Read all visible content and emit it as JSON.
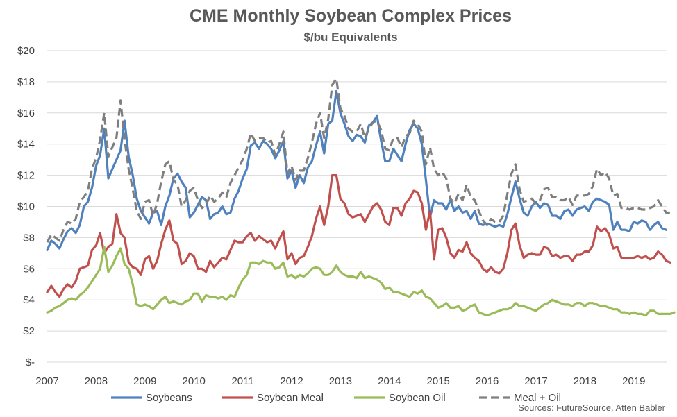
{
  "chart_data": {
    "type": "line",
    "title": "CME Monthly Soybean Complex Prices",
    "subtitle": "$/bu Equivalents",
    "source": "Sources: FutureSource, Atten Babler",
    "x_start": 2007,
    "x_end": 2019.67,
    "x_step": 0.0833,
    "x_ticks": [
      "2007",
      "2008",
      "2009",
      "2010",
      "2011",
      "2012",
      "2013",
      "2014",
      "2015",
      "2016",
      "2017",
      "2018",
      "2019"
    ],
    "ylim": [
      0,
      20
    ],
    "y_ticks": [
      "$-",
      "$2",
      "$4",
      "$6",
      "$8",
      "$10",
      "$12",
      "$14",
      "$16",
      "$18",
      "$20"
    ],
    "grid": true,
    "legend_position": "bottom",
    "series": [
      {
        "name": "Soybeans",
        "color": "#4F81BD",
        "dash": false,
        "values": [
          7.2,
          7.8,
          7.6,
          7.3,
          7.9,
          8.4,
          8.6,
          8.3,
          8.8,
          10.0,
          10.3,
          11.2,
          12.6,
          13.3,
          15.0,
          11.8,
          12.4,
          13.0,
          13.6,
          15.5,
          13.2,
          12.0,
          10.5,
          9.7,
          9.3,
          8.9,
          9.6,
          9.7,
          8.8,
          10.0,
          10.7,
          11.8,
          12.1,
          11.6,
          11.2,
          9.3,
          9.6,
          10.1,
          10.6,
          10.4,
          9.2,
          9.5,
          9.6,
          10.0,
          9.5,
          9.6,
          10.5,
          11.0,
          11.8,
          12.4,
          13.9,
          14.1,
          13.7,
          14.2,
          14.0,
          13.7,
          13.1,
          13.6,
          14.2,
          11.8,
          12.3,
          11.2,
          12.0,
          11.5,
          12.5,
          12.9,
          13.9,
          14.8,
          13.4,
          15.3,
          15.5,
          17.4,
          16.0,
          15.3,
          14.5,
          14.2,
          14.6,
          14.5,
          14.1,
          15.2,
          15.4,
          15.8,
          14.2,
          12.9,
          12.9,
          13.7,
          13.3,
          12.9,
          14.0,
          14.9,
          15.3,
          15.0,
          14.0,
          11.7,
          9.3,
          10.4,
          10.2,
          10.2,
          9.8,
          10.4,
          9.7,
          10.0,
          9.6,
          9.7,
          9.2,
          9.7,
          8.9,
          8.8,
          8.9,
          8.8,
          8.7,
          8.8,
          8.7,
          9.5,
          10.6,
          11.6,
          10.5,
          9.6,
          9.4,
          10.0,
          10.3,
          9.9,
          10.2,
          10.1,
          9.4,
          9.4,
          9.2,
          9.7,
          9.8,
          9.4,
          9.8,
          9.9,
          10.0,
          9.7,
          10.3,
          10.5,
          10.4,
          10.3,
          10.1,
          8.5,
          9.0,
          8.5,
          8.5,
          8.4,
          9.0,
          8.9,
          9.1,
          9.0,
          8.5,
          8.8,
          9.0,
          8.6,
          8.5
        ]
      },
      {
        "name": "Soybean Meal",
        "color": "#C0504D",
        "dash": false,
        "values": [
          4.5,
          4.9,
          4.5,
          4.2,
          4.7,
          5.0,
          4.8,
          5.2,
          6.0,
          6.1,
          6.2,
          7.2,
          7.5,
          8.3,
          7.0,
          7.4,
          7.6,
          9.5,
          8.3,
          8.0,
          6.4,
          6.1,
          6.0,
          5.6,
          6.6,
          6.8,
          6.0,
          6.5,
          7.6,
          8.5,
          9.1,
          7.8,
          7.6,
          6.3,
          6.5,
          7.0,
          6.8,
          6.0,
          6.0,
          5.8,
          6.5,
          6.1,
          6.4,
          6.7,
          6.6,
          7.2,
          7.8,
          7.7,
          7.7,
          8.1,
          8.3,
          7.8,
          8.1,
          7.9,
          7.7,
          7.8,
          7.3,
          7.9,
          8.4,
          6.6,
          7.0,
          6.3,
          6.7,
          6.8,
          7.4,
          8.1,
          9.2,
          10.0,
          8.8,
          10.0,
          12.0,
          12.0,
          10.5,
          10.2,
          9.5,
          9.3,
          9.4,
          9.5,
          9.0,
          9.5,
          10.0,
          10.2,
          9.8,
          9.0,
          8.8,
          9.9,
          9.9,
          9.4,
          10.2,
          10.5,
          11.0,
          10.9,
          10.2,
          8.5,
          9.7,
          6.6,
          8.5,
          8.6,
          8.0,
          7.0,
          6.7,
          7.2,
          7.1,
          7.7,
          7.0,
          6.7,
          6.5,
          6.0,
          5.8,
          6.1,
          5.8,
          5.7,
          6.0,
          7.0,
          8.5,
          8.9,
          7.5,
          6.7,
          6.9,
          7.0,
          6.9,
          6.9,
          7.4,
          7.3,
          6.8,
          6.9,
          6.7,
          6.8,
          6.8,
          6.5,
          6.9,
          6.9,
          7.1,
          7.1,
          7.5,
          8.7,
          8.4,
          8.6,
          8.2,
          7.3,
          7.4,
          6.7,
          6.7,
          6.7,
          6.7,
          6.8,
          6.7,
          6.8,
          6.6,
          6.7,
          7.1,
          6.9,
          6.5,
          6.4
        ]
      },
      {
        "name": "Soybean Oil",
        "color": "#9BBB59",
        "dash": false,
        "values": [
          3.2,
          3.3,
          3.5,
          3.6,
          3.8,
          4.0,
          4.1,
          4.0,
          4.3,
          4.5,
          4.8,
          5.2,
          5.6,
          6.0,
          7.4,
          5.8,
          6.2,
          6.8,
          7.3,
          6.3,
          6.0,
          5.0,
          3.7,
          3.6,
          3.7,
          3.6,
          3.4,
          3.7,
          4.0,
          4.2,
          3.8,
          3.9,
          3.8,
          3.7,
          3.9,
          4.0,
          4.4,
          4.4,
          3.9,
          4.3,
          4.2,
          4.2,
          4.1,
          4.2,
          4.0,
          4.3,
          4.2,
          4.8,
          5.3,
          5.6,
          6.4,
          6.4,
          6.3,
          6.5,
          6.4,
          6.4,
          6.0,
          6.1,
          6.4,
          5.5,
          5.6,
          5.4,
          5.6,
          5.5,
          5.7,
          6.0,
          6.1,
          6.0,
          5.6,
          5.6,
          5.8,
          6.2,
          5.8,
          5.6,
          5.5,
          5.5,
          5.4,
          5.8,
          5.4,
          5.5,
          5.4,
          5.3,
          5.1,
          4.7,
          4.8,
          4.5,
          4.5,
          4.4,
          4.3,
          4.2,
          4.5,
          4.4,
          4.6,
          4.2,
          4.1,
          3.8,
          3.5,
          3.6,
          3.8,
          3.5,
          3.5,
          3.6,
          3.3,
          3.4,
          3.6,
          3.7,
          3.2,
          3.1,
          3.0,
          3.1,
          3.2,
          3.3,
          3.4,
          3.4,
          3.5,
          3.8,
          3.6,
          3.6,
          3.5,
          3.4,
          3.3,
          3.5,
          3.7,
          3.8,
          4.0,
          3.9,
          3.8,
          3.7,
          3.7,
          3.6,
          3.8,
          3.8,
          3.6,
          3.8,
          3.8,
          3.7,
          3.6,
          3.6,
          3.5,
          3.4,
          3.4,
          3.2,
          3.2,
          3.1,
          3.2,
          3.1,
          3.1,
          3.0,
          3.3,
          3.3,
          3.1,
          3.1,
          3.1,
          3.1,
          3.2
        ]
      },
      {
        "name": "Meal + Oil",
        "color": "#7F7F7F",
        "dash": true,
        "values": [
          7.7,
          8.2,
          8.0,
          7.8,
          8.5,
          9.0,
          8.9,
          9.2,
          10.3,
          10.6,
          11.0,
          12.4,
          13.1,
          14.3,
          16.0,
          13.2,
          13.8,
          14.4,
          16.8,
          14.3,
          12.4,
          11.1,
          9.7,
          9.2,
          10.3,
          10.4,
          9.4,
          10.2,
          11.6,
          12.7,
          12.9,
          11.7,
          11.4,
          10.0,
          10.4,
          11.0,
          11.2,
          10.4,
          9.9,
          10.1,
          10.7,
          10.3,
          10.5,
          10.9,
          10.6,
          11.5,
          12.0,
          12.5,
          13.0,
          13.7,
          14.7,
          14.2,
          14.4,
          14.4,
          14.1,
          14.2,
          13.3,
          14.0,
          14.8,
          12.1,
          12.6,
          11.7,
          12.3,
          12.3,
          13.1,
          14.1,
          15.3,
          16.0,
          14.4,
          15.6,
          17.8,
          18.2,
          16.3,
          15.8,
          15.0,
          14.8,
          14.8,
          15.3,
          14.4,
          15.0,
          15.4,
          15.5,
          14.9,
          13.7,
          13.6,
          14.4,
          14.4,
          13.8,
          14.5,
          14.7,
          15.5,
          15.3,
          14.8,
          12.7,
          13.8,
          12.4,
          12.0,
          12.2,
          11.8,
          10.5,
          10.2,
          10.8,
          10.4,
          11.4,
          10.6,
          10.4,
          9.7,
          9.1,
          8.8,
          9.2,
          9.0,
          9.0,
          9.4,
          10.8,
          12.1,
          12.7,
          11.1,
          10.3,
          10.4,
          10.5,
          10.2,
          10.4,
          11.1,
          11.2,
          10.6,
          10.6,
          10.4,
          10.4,
          10.6,
          10.1,
          10.7,
          10.7,
          10.7,
          10.8,
          11.3,
          12.4,
          12.0,
          12.2,
          11.8,
          10.7,
          10.8,
          9.9,
          9.9,
          9.8,
          9.9,
          9.9,
          9.8,
          9.8,
          9.9,
          10.0,
          10.4,
          10.0,
          9.6,
          9.6
        ]
      }
    ]
  }
}
